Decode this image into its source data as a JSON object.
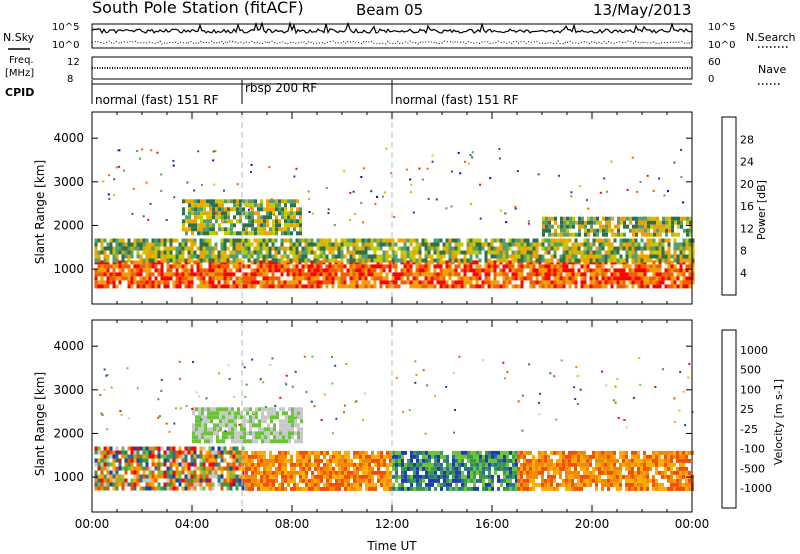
{
  "header": {
    "title": "South Pole Station (fitACF)",
    "beam": "Beam 05",
    "date": "13/May/2013"
  },
  "strips": {
    "nsky_label": "N.Sky",
    "nsearch_label": "N.Search",
    "freq_label_1": "Freq.",
    "freq_label_2": "[MHz]",
    "nave_label": "Nave",
    "cpid_label": "CPID",
    "left_ticks_top": [
      "10^5",
      "10^0"
    ],
    "right_ticks_top": [
      "10^5",
      "10^0"
    ],
    "freq_ticks": [
      "12",
      "8"
    ],
    "nave_ticks": [
      "60",
      "0"
    ]
  },
  "cpid_segments": [
    {
      "label": "normal (fast) 151 RF",
      "start_h": 0,
      "end_h": 6
    },
    {
      "label": "rbsp 200 RF",
      "start_h": 6,
      "end_h": 12
    },
    {
      "label": "normal (fast) 151 RF",
      "start_h": 12,
      "end_h": 24
    }
  ],
  "colors": {
    "power_scale": [
      "#0000ff",
      "#1f3fa8",
      "#2f6e4f",
      "#52a06a",
      "#c8c800",
      "#f0a000",
      "#f06000",
      "#ff0000"
    ],
    "velocity_scale": [
      "#ff0000",
      "#f05000",
      "#f08a00",
      "#ffaa00",
      "#c8c8c8",
      "#6ac33a",
      "#3a9a4a",
      "#2e6f8c",
      "#1f3fa8"
    ]
  },
  "chart_data": [
    {
      "type": "heatmap",
      "name": "power-panel",
      "ylabel": "Slant Range [km]",
      "xlabel": "",
      "xlim": [
        0,
        24
      ],
      "ylim": [
        200,
        4600
      ],
      "y_ticks": [
        "1000",
        "2000",
        "3000",
        "4000"
      ],
      "colorbar": {
        "label": "Power [dB]",
        "ticks": [
          "4",
          "8",
          "12",
          "16",
          "20",
          "24",
          "28"
        ],
        "range": [
          0,
          32
        ]
      },
      "bands": [
        {
          "x_start": 0.1,
          "x_end": 24.0,
          "y_low": 600,
          "y_high": 1200,
          "level": "high (24-32 dB)"
        },
        {
          "x_start": 0.1,
          "x_end": 24.0,
          "y_low": 1200,
          "y_high": 1700,
          "level": "medium (8-20 dB)"
        },
        {
          "x_start": 3.6,
          "x_end": 8.4,
          "y_low": 1800,
          "y_high": 2600,
          "level": "medium (12-20 dB)"
        },
        {
          "x_start": 18.0,
          "x_end": 24.0,
          "y_low": 1800,
          "y_high": 2200,
          "level": "low (4-12 dB)"
        }
      ],
      "dashed_markers_h": [
        6,
        12
      ]
    },
    {
      "type": "heatmap",
      "name": "velocity-panel",
      "ylabel": "Slant Range [km]",
      "xlabel": "Time UT",
      "xlim": [
        0,
        24
      ],
      "ylim": [
        200,
        4600
      ],
      "y_ticks": [
        "1000",
        "2000",
        "3000",
        "4000"
      ],
      "x_ticks": [
        "00:00",
        "04:00",
        "08:00",
        "12:00",
        "16:00",
        "20:00",
        "00:00"
      ],
      "colorbar": {
        "label": "Velocity [m s-1]",
        "ticks": [
          "1000",
          "500",
          "100",
          "25",
          "-25",
          "-100",
          "-500",
          "-1000"
        ],
        "range": [
          -1000,
          1000
        ]
      },
      "bands": [
        {
          "x_start": 0.1,
          "x_end": 6.0,
          "y_low": 700,
          "y_high": 1700,
          "level": "mixed green/orange (-100 to 100)"
        },
        {
          "x_start": 6.0,
          "x_end": 12.0,
          "y_low": 700,
          "y_high": 1600,
          "level": "orange (-100 to -500)"
        },
        {
          "x_start": 12.0,
          "x_end": 17.0,
          "y_low": 700,
          "y_high": 1600,
          "level": "green/blue (25 to 500)"
        },
        {
          "x_start": 17.0,
          "x_end": 24.0,
          "y_low": 700,
          "y_high": 1600,
          "level": "orange (-100 to -500)"
        },
        {
          "x_start": 4.0,
          "x_end": 8.4,
          "y_low": 1800,
          "y_high": 2600,
          "level": "grey/green (-25 to 100)"
        }
      ],
      "dashed_markers_h": [
        6,
        12
      ]
    }
  ]
}
